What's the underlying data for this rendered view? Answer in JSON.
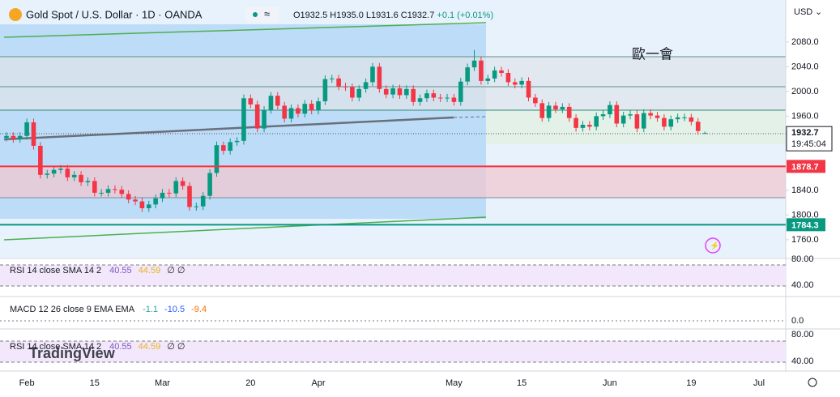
{
  "ui": {
    "title": "Gold Spot / U.S. Dollar · 1D · OANDA",
    "ohlc": [
      "O1932.5",
      "H1935.0",
      "L1931.6",
      "C1932.7",
      "+0.1 (+0.01%)"
    ],
    "currency": "USD",
    "annotation": "歐一會",
    "countdown": "19:45:04",
    "rsi_legend": [
      "RSI 14 close SMA 14 2",
      "40.55",
      "44.59",
      "∅ ∅"
    ],
    "macd_legend": [
      "MACD 12 26 close 9 EMA EMA",
      "-1.1",
      "-10.5",
      "-9.4"
    ],
    "rsi2_legend": [
      "RSI 14 close SMA 14 2",
      "40.55",
      "44.59",
      "∅ ∅"
    ],
    "rsi_axis": [
      "80.00",
      "40.00"
    ],
    "macd_axis": [
      "0.0"
    ],
    "rsi2_axis": [
      "80.00",
      "40.00"
    ],
    "watermark": "TradingView"
  },
  "chart_data": {
    "type": "candlestick",
    "categories": [
      null,
      null,
      null,
      "Feb",
      null,
      null,
      null,
      null,
      null,
      null,
      null,
      null,
      null,
      "15",
      null,
      null,
      null,
      null,
      null,
      null,
      null,
      null,
      null,
      "Mar",
      null,
      null,
      null,
      null,
      null,
      null,
      null,
      null,
      null,
      null,
      null,
      null,
      "20",
      null,
      null,
      null,
      null,
      null,
      null,
      null,
      null,
      null,
      "Apr",
      null,
      null,
      null,
      null,
      null,
      null,
      null,
      null,
      null,
      null,
      null,
      null,
      null,
      null,
      null,
      null,
      null,
      null,
      null,
      "May",
      null,
      null,
      null,
      null,
      null,
      null,
      null,
      null,
      null,
      "15",
      null,
      null,
      null,
      null,
      null,
      null,
      null,
      null,
      null,
      null,
      null,
      null,
      "Jun",
      null,
      null,
      null,
      null,
      null,
      null,
      null,
      null,
      null,
      null,
      null,
      "19",
      null,
      null,
      null,
      null,
      null,
      null,
      null,
      null,
      null,
      "Jul"
    ],
    "open": [
      1925,
      1928,
      1923,
      1928,
      1950,
      1912,
      1865,
      1867,
      1873,
      1875,
      1861,
      1865,
      1853,
      1855,
      1836,
      1836,
      1842,
      1841,
      1834,
      1825,
      1822,
      1811,
      1817,
      1827,
      1836,
      1835,
      1855,
      1847,
      1813,
      1814,
      1831,
      1868,
      1913,
      1904,
      1918,
      1920,
      1989,
      1979,
      1940,
      1970,
      1993,
      1977,
      1956,
      1973,
      1964,
      1980,
      1969,
      1984,
      2020,
      2021,
      2008,
      2007,
      1990,
      2004,
      2015,
      2040,
      2004,
      1995,
      2005,
      1994,
      2004,
      1983,
      1989,
      1997,
      1990,
      1989,
      1990,
      1983,
      2016,
      2039,
      2050,
      2017,
      2021,
      2034,
      2030,
      2015,
      2011,
      2017,
      1990,
      1981,
      1957,
      1977,
      1971,
      1975,
      1957,
      1941,
      1946,
      1943,
      1960,
      1963,
      1978,
      1948,
      1961,
      1963,
      1940,
      1965,
      1961,
      1957,
      1943,
      1955,
      1958,
      1958,
      1951,
      1932.5,
      null,
      null,
      null,
      null,
      null,
      null,
      null,
      null
    ],
    "high": [
      1934,
      1934,
      1934,
      1956,
      1956,
      1918,
      1873,
      1879,
      1881,
      1881,
      1871,
      1871,
      1861,
      1861,
      1842,
      1848,
      1848,
      1847,
      1840,
      1831,
      1828,
      1823,
      1833,
      1842,
      1842,
      1861,
      1861,
      1853,
      1820,
      1837,
      1874,
      1919,
      1919,
      1924,
      1926,
      1995,
      1995,
      1985,
      1976,
      1999,
      1999,
      1983,
      1979,
      1979,
      1986,
      1986,
      1990,
      2026,
      2027,
      2027,
      2014,
      2013,
      2010,
      2021,
      2046,
      2046,
      2010,
      2011,
      2011,
      2010,
      2010,
      1995,
      2003,
      2003,
      1996,
      1996,
      1996,
      2022,
      2045,
      2067,
      2056,
      2027,
      2040,
      2040,
      2036,
      2021,
      2023,
      2023,
      1996,
      1987,
      1983,
      1983,
      1981,
      1981,
      1963,
      1952,
      1952,
      1966,
      1969,
      1984,
      1984,
      1967,
      1969,
      1969,
      1971,
      1971,
      1967,
      1963,
      1961,
      1964,
      1964,
      1964,
      1957,
      1935.0,
      null,
      null,
      null,
      null,
      null,
      null,
      null,
      null
    ],
    "low": [
      1919,
      1917,
      1917,
      1922,
      1906,
      1859,
      1859,
      1861,
      1867,
      1855,
      1855,
      1847,
      1847,
      1830,
      1830,
      1830,
      1835,
      1828,
      1819,
      1816,
      1805,
      1805,
      1811,
      1821,
      1829,
      1829,
      1841,
      1807,
      1807,
      1808,
      1825,
      1862,
      1898,
      1898,
      1912,
      1914,
      1973,
      1934,
      1934,
      1964,
      1971,
      1950,
      1950,
      1958,
      1958,
      1963,
      1963,
      1978,
      2014,
      2002,
      2001,
      1984,
      1984,
      1998,
      2009,
      1998,
      1989,
      1989,
      1988,
      1988,
      1977,
      1977,
      1983,
      1984,
      1983,
      1983,
      1977,
      1977,
      2010,
      2033,
      2011,
      2011,
      2015,
      2024,
      2009,
      2005,
      2005,
      1984,
      1975,
      1951,
      1951,
      1965,
      1965,
      1951,
      1935,
      1935,
      1937,
      1937,
      1954,
      1957,
      1942,
      1942,
      1955,
      1934,
      1934,
      1955,
      1951,
      1937,
      1937,
      1949,
      1952,
      1945,
      1930,
      1931.6,
      null,
      null,
      null,
      null,
      null,
      null,
      null,
      null
    ],
    "close": [
      1928,
      1923,
      1928,
      1950,
      1912,
      1865,
      1867,
      1873,
      1875,
      1861,
      1865,
      1853,
      1855,
      1836,
      1836,
      1842,
      1841,
      1834,
      1825,
      1822,
      1811,
      1817,
      1827,
      1836,
      1835,
      1855,
      1847,
      1813,
      1814,
      1831,
      1868,
      1913,
      1904,
      1918,
      1920,
      1989,
      1979,
      1940,
      1970,
      1993,
      1977,
      1956,
      1973,
      1964,
      1980,
      1969,
      1984,
      2020,
      2021,
      2008,
      2007,
      1990,
      2004,
      2015,
      2040,
      2004,
      1995,
      2005,
      1994,
      2004,
      1983,
      1989,
      1997,
      1990,
      1989,
      1990,
      1983,
      2016,
      2039,
      2050,
      2017,
      2021,
      2034,
      2030,
      2015,
      2011,
      2017,
      1990,
      1981,
      1957,
      1977,
      1971,
      1975,
      1957,
      1941,
      1946,
      1943,
      1960,
      1963,
      1978,
      1948,
      1961,
      1963,
      1940,
      1965,
      1961,
      1957,
      1943,
      1955,
      1958,
      1958,
      1951,
      1936,
      1932.7,
      null,
      null,
      null,
      null,
      null,
      null,
      null,
      null
    ],
    "up_color": "#089981",
    "down_color": "#f23645",
    "ylim": [
      1731,
      2148
    ],
    "yticks": [
      {
        "value": 1760,
        "label": "1760.0"
      },
      {
        "value": 1800,
        "label": "1800.0"
      },
      {
        "value": 1840,
        "label": "1840.0"
      },
      {
        "value": 1960,
        "label": "1960.0"
      },
      {
        "value": 2000,
        "label": "2000.0"
      },
      {
        "value": 2040,
        "label": "2040.0"
      },
      {
        "value": 2080,
        "label": "2080.0"
      }
    ],
    "hlines": [
      {
        "value": 1878.7,
        "color": "#f23645"
      },
      {
        "value": 1784.3,
        "color": "#089981"
      }
    ],
    "grid": false
  }
}
